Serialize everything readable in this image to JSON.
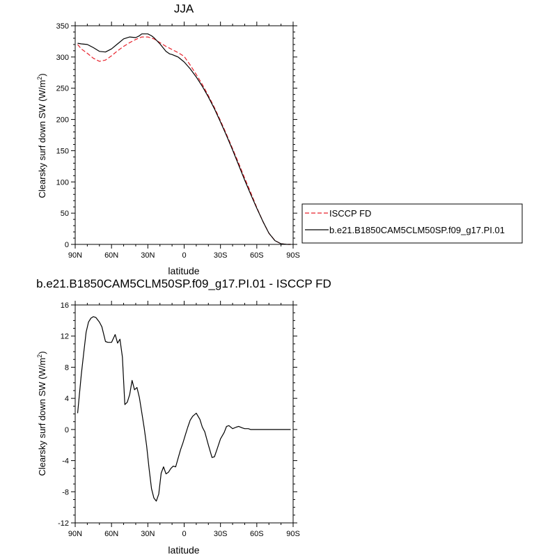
{
  "chart_data": [
    {
      "type": "line",
      "title": "JJA",
      "xlabel": "latitude",
      "ylabel_main": "Clearsky surf down SW (W/m",
      "ylabel_sup": "2",
      "ylabel_end": ")",
      "xlim": [
        90,
        -90
      ],
      "ylim": [
        0,
        350
      ],
      "xticks": [
        {
          "value": 90,
          "label": "90N"
        },
        {
          "value": 60,
          "label": "60N"
        },
        {
          "value": 30,
          "label": "30N"
        },
        {
          "value": 0,
          "label": "0"
        },
        {
          "value": -30,
          "label": "30S"
        },
        {
          "value": -60,
          "label": "60S"
        },
        {
          "value": -90,
          "label": "90S"
        }
      ],
      "yticks": [
        {
          "value": 0,
          "label": "0"
        },
        {
          "value": 50,
          "label": "50"
        },
        {
          "value": 100,
          "label": "100"
        },
        {
          "value": 150,
          "label": "150"
        },
        {
          "value": 200,
          "label": "200"
        },
        {
          "value": 250,
          "label": "250"
        },
        {
          "value": 300,
          "label": "300"
        },
        {
          "value": 350,
          "label": "350"
        }
      ],
      "grid": false,
      "legend_position": "right",
      "series": [
        {
          "name": "ISCCP FD",
          "color": "#e8202a",
          "dash": "dashed",
          "x": [
            88,
            85,
            80,
            75,
            70,
            65,
            60,
            55,
            50,
            45,
            40,
            35,
            30,
            25,
            20,
            15,
            10,
            5,
            0,
            -5,
            -10,
            -15,
            -20,
            -25,
            -30,
            -35,
            -40,
            -45,
            -50,
            -55,
            -60,
            -65,
            -70,
            -75,
            -80,
            -85,
            -88
          ],
          "y": [
            320,
            313,
            306,
            298,
            293,
            295,
            302,
            310,
            317,
            323,
            328,
            332,
            332,
            329,
            323,
            317,
            312,
            307,
            301,
            287,
            272,
            256,
            238,
            219,
            198,
            176,
            153,
            130,
            106,
            83,
            59,
            37,
            18,
            6,
            1,
            0,
            0
          ]
        },
        {
          "name": "b.e21.B1850CAM5CLM50SP.f09_g17.PI.01",
          "color": "#000000",
          "dash": "solid",
          "x": [
            88,
            85,
            80,
            75,
            70,
            65,
            60,
            55,
            50,
            45,
            40,
            37,
            35,
            30,
            27,
            25,
            20,
            15,
            12,
            10,
            5,
            0,
            -5,
            -10,
            -15,
            -20,
            -25,
            -30,
            -35,
            -40,
            -45,
            -50,
            -55,
            -60,
            -65,
            -70,
            -75,
            -80,
            -85,
            -88
          ],
          "y": [
            322,
            321,
            320,
            315,
            309,
            308,
            313,
            321,
            329,
            332,
            331,
            334,
            337,
            337,
            334,
            331,
            321,
            309,
            305,
            304,
            300,
            292,
            281,
            268,
            253,
            236,
            217,
            196,
            174,
            151,
            127,
            103,
            80,
            58,
            37,
            18,
            6,
            1,
            0,
            0
          ]
        }
      ]
    },
    {
      "type": "line",
      "title": "b.e21.B1850CAM5CLM50SP.f09_g17.PI.01 - ISCCP FD",
      "xlabel": "latitude",
      "ylabel_main": "Clearsky surf down SW (W/m",
      "ylabel_sup": "2",
      "ylabel_end": ")",
      "xlim": [
        90,
        -90
      ],
      "ylim": [
        -12,
        16
      ],
      "xticks": [
        {
          "value": 90,
          "label": "90N"
        },
        {
          "value": 60,
          "label": "60N"
        },
        {
          "value": 30,
          "label": "30N"
        },
        {
          "value": 0,
          "label": "0"
        },
        {
          "value": -30,
          "label": "30S"
        },
        {
          "value": -60,
          "label": "60S"
        },
        {
          "value": -90,
          "label": "90S"
        }
      ],
      "yticks": [
        {
          "value": -12,
          "label": "-12"
        },
        {
          "value": -8,
          "label": "-8"
        },
        {
          "value": -4,
          "label": "-4"
        },
        {
          "value": 0,
          "label": "0"
        },
        {
          "value": 4,
          "label": "4"
        },
        {
          "value": 8,
          "label": "8"
        },
        {
          "value": 12,
          "label": "12"
        },
        {
          "value": 16,
          "label": "16"
        }
      ],
      "grid": false,
      "series": [
        {
          "color": "#000000",
          "dash": "solid",
          "x": [
            88,
            85,
            83,
            81,
            79,
            77,
            75,
            73,
            70,
            68,
            65,
            63,
            60,
            57,
            55,
            53,
            51,
            49,
            47,
            45,
            43,
            41,
            39,
            37,
            35,
            33,
            31,
            29,
            27,
            25,
            23,
            21,
            19,
            17,
            15,
            13,
            11,
            9,
            7,
            5,
            3,
            1,
            -1,
            -3,
            -5,
            -7,
            -10,
            -13,
            -15,
            -17,
            -20,
            -23,
            -25,
            -27,
            -30,
            -33,
            -35,
            -37,
            -40,
            -43,
            -45,
            -48,
            -50,
            -53,
            -55,
            -57,
            -60,
            -63,
            -65,
            -70,
            -75,
            -80,
            -85,
            -88
          ],
          "y": [
            2.1,
            7.0,
            9.8,
            12.5,
            13.8,
            14.3,
            14.5,
            14.4,
            13.8,
            13.2,
            11.3,
            11.2,
            11.2,
            12.2,
            11.1,
            11.6,
            9.3,
            3.2,
            3.5,
            4.5,
            6.3,
            5.1,
            5.4,
            4.1,
            2.2,
            0.2,
            -2.1,
            -5.0,
            -7.6,
            -8.8,
            -9.2,
            -8.3,
            -5.6,
            -4.8,
            -5.7,
            -5.5,
            -5.0,
            -4.7,
            -4.8,
            -3.7,
            -2.6,
            -1.7,
            -0.7,
            0.3,
            1.2,
            1.7,
            2.1,
            1.3,
            0.3,
            -0.3,
            -2.0,
            -3.6,
            -3.5,
            -2.6,
            -1.2,
            -0.4,
            0.4,
            0.5,
            0.1,
            0.3,
            0.4,
            0.2,
            0.1,
            0.1,
            0.0,
            0.0,
            0.0,
            0.0,
            0.0,
            0.0,
            0.0,
            0.0,
            0.0,
            0.0
          ]
        }
      ]
    }
  ]
}
